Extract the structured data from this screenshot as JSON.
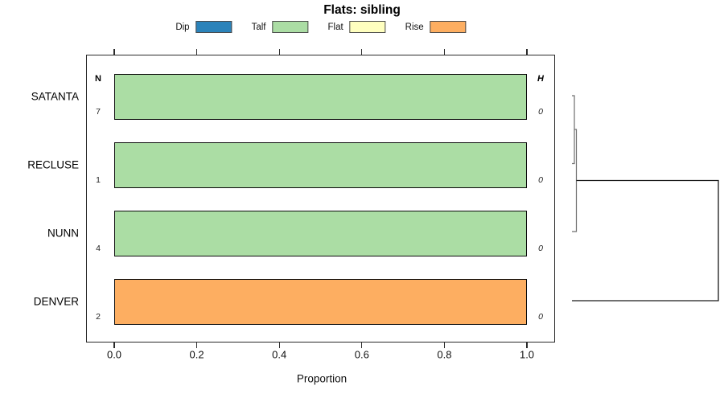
{
  "title": "Flats: sibling",
  "axis": {
    "xlabel": "Proportion",
    "xtick_labels": [
      "0.0",
      "0.2",
      "0.4",
      "0.6",
      "0.8",
      "1.0"
    ],
    "xtick_values": [
      0,
      0.2,
      0.4,
      0.6,
      0.8,
      1.0
    ]
  },
  "columns": {
    "n_header": "N",
    "h_header": "H"
  },
  "chart_data": {
    "type": "bar",
    "orientation": "horizontal-stacked",
    "title": "Flats: sibling",
    "xlabel": "Proportion",
    "xlim": [
      0,
      1
    ],
    "grid": false,
    "legend_position": "top",
    "categories": [
      "SATANTA",
      "RECLUSE",
      "NUNN",
      "DENVER"
    ],
    "series": [
      {
        "name": "Dip",
        "color": "#2b83ba",
        "values": [
          0,
          0,
          0,
          0
        ]
      },
      {
        "name": "Talf",
        "color": "#abdda4",
        "values": [
          1.0,
          1.0,
          1.0,
          0
        ]
      },
      {
        "name": "Flat",
        "color": "#ffffbf",
        "values": [
          0,
          0,
          0,
          0
        ]
      },
      {
        "name": "Rise",
        "color": "#fdae61",
        "values": [
          0,
          0,
          0,
          1.0
        ]
      }
    ],
    "row_annotations": {
      "N": [
        "7",
        "1",
        "4",
        "2"
      ],
      "H": [
        "0",
        "0",
        "0",
        "0"
      ]
    },
    "dendrogram": {
      "position": "right",
      "merges": [
        {
          "join": [
            "SATANTA",
            "RECLUSE"
          ],
          "height": "near-zero"
        },
        {
          "join": [
            "SATANTA+RECLUSE",
            "NUNN"
          ],
          "height": "near-zero"
        },
        {
          "join": [
            "SATANTA+RECLUSE+NUNN",
            "DENVER"
          ],
          "height": "large"
        }
      ]
    }
  }
}
